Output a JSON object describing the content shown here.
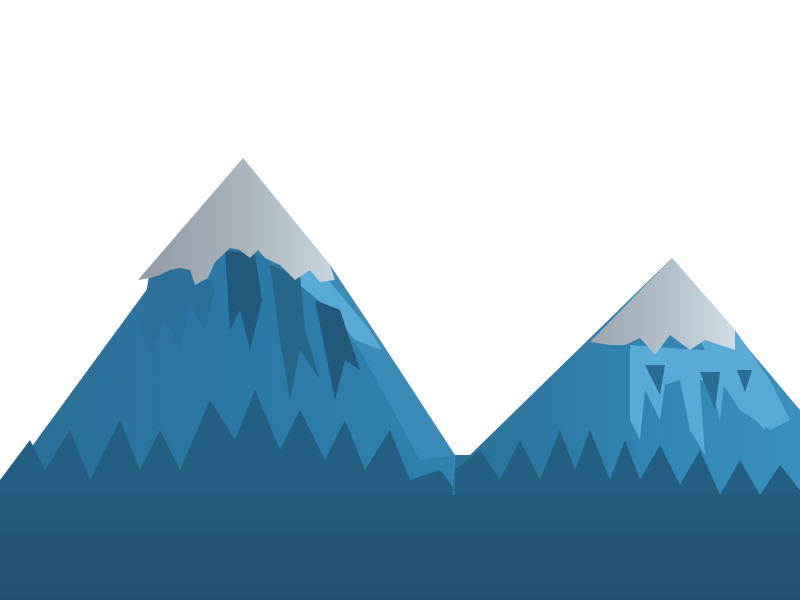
{
  "scene": {
    "background": "#ffffff",
    "colors": {
      "mountain_base": "#2a6e94",
      "mountain_shadow": "#245a78",
      "mountain_mid": "#3a86b0",
      "highlight_light": "#5aaad6",
      "snow_gray": "#9aa6b0",
      "snow_light": "#c4d2dc",
      "ground": "#235470"
    },
    "elements": [
      {
        "name": "left-mountain",
        "kind": "illustration"
      },
      {
        "name": "right-mountain",
        "kind": "illustration"
      },
      {
        "name": "ground-band",
        "kind": "illustration"
      }
    ]
  }
}
